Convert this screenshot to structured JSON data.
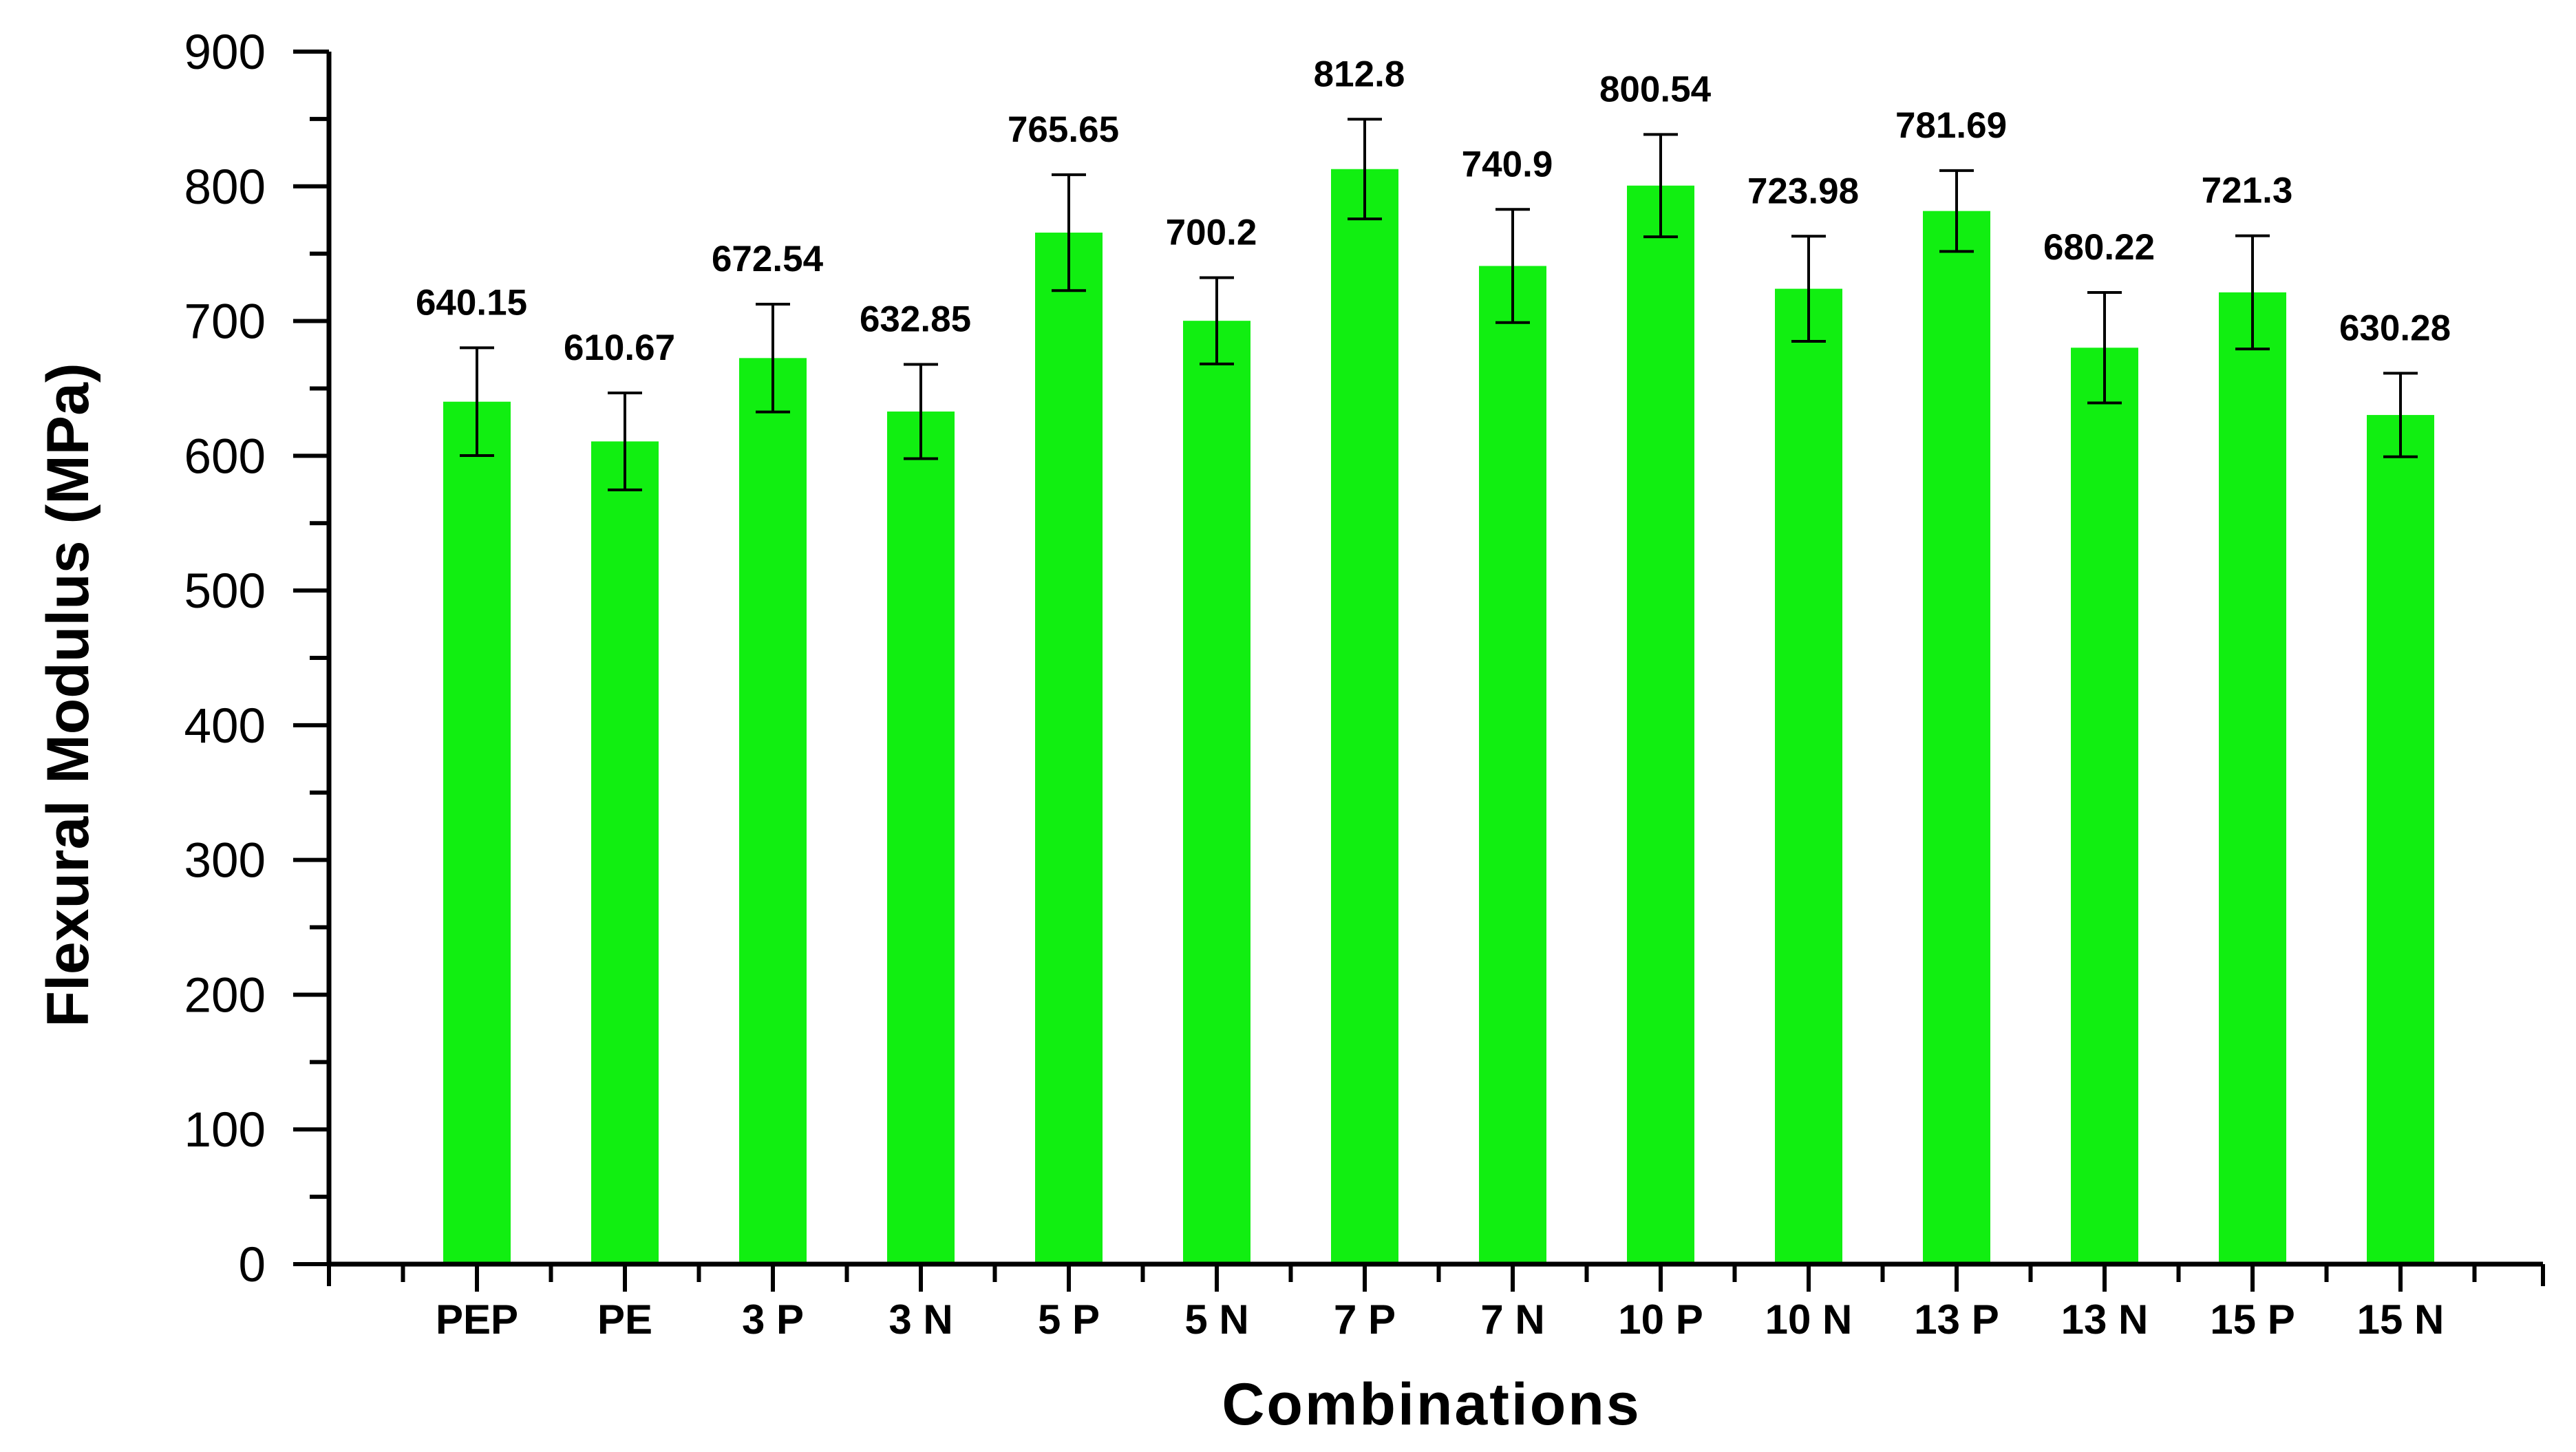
{
  "chart_data": {
    "type": "bar",
    "title": "",
    "xlabel": "Combinations",
    "ylabel": "Flexural Modulus (MPa)",
    "ylim": [
      0,
      900
    ],
    "yticks": [
      0,
      100,
      200,
      300,
      400,
      500,
      600,
      700,
      800,
      900
    ],
    "ytick_labels": [
      "0",
      "100",
      "200",
      "300",
      "400",
      "500",
      "600",
      "700",
      "800",
      "900"
    ],
    "categories": [
      "PEP",
      "PE",
      "3 P",
      "3 N",
      "5 P",
      "5 N",
      "7 P",
      "7  N",
      "10 P",
      "10 N",
      "13 P",
      "13 N",
      "15 P",
      "15 N"
    ],
    "values": [
      640.15,
      610.67,
      672.54,
      632.85,
      765.65,
      700.2,
      812.8,
      740.9,
      800.54,
      723.98,
      781.69,
      680.22,
      721.3,
      630.28
    ],
    "value_labels": [
      "640.15",
      "610.67",
      "672.54",
      "632.85",
      "765.65",
      "700.2",
      "812.8",
      "740.9",
      "800.54",
      "723.98",
      "781.69",
      "680.22",
      "721.3",
      "630.28"
    ],
    "error": [
      40,
      36,
      40,
      35,
      43,
      32,
      37,
      42,
      38,
      39,
      30,
      41,
      42,
      31
    ],
    "bar_color": "#11ef11",
    "grid": false,
    "legend": "none"
  }
}
